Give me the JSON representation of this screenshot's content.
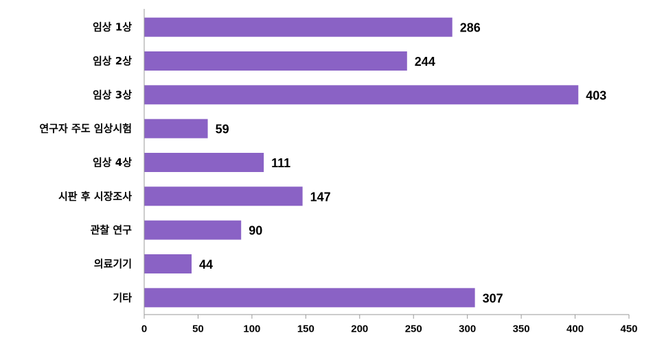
{
  "chart_data": {
    "type": "bar",
    "orientation": "horizontal",
    "categories": [
      "임상 1상",
      "임상 2상",
      "임상 3상",
      "연구자 주도 임상시험",
      "임상 4상",
      "시판 후 시장조사",
      "관찰 연구",
      "의료기기",
      "기타"
    ],
    "values": [
      286,
      244,
      403,
      59,
      111,
      147,
      90,
      44,
      307
    ],
    "xlim": [
      0,
      450
    ],
    "xticks": [
      0,
      50,
      100,
      150,
      200,
      250,
      300,
      350,
      400,
      450
    ],
    "bar_color": "#8a62c5",
    "axis_color": "#999999",
    "grid": false,
    "legend": "none",
    "data_labels": true
  }
}
